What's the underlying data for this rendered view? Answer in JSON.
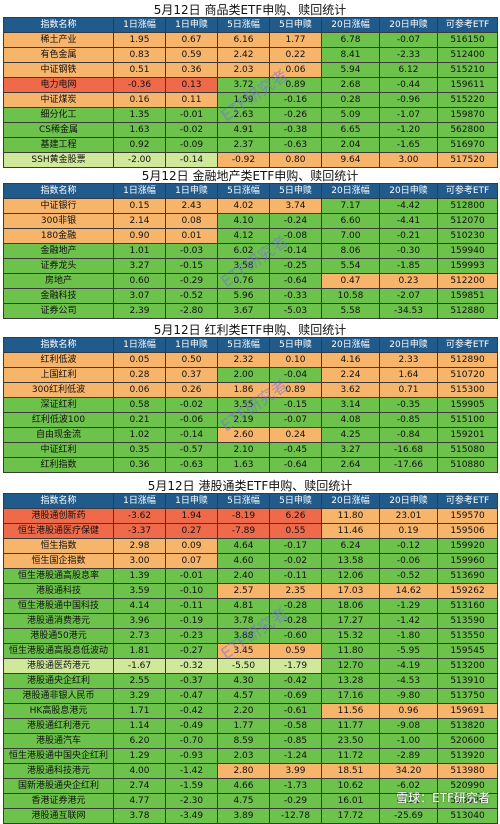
{
  "headers": [
    "指数名称",
    "1日涨幅",
    "1日申赎",
    "5日涨幅",
    "5日申赎",
    "20日涨幅",
    "20日申赎",
    "可参考ETF"
  ],
  "watermark": "ETF研究者",
  "footer": "雪球：ETF研究者",
  "colors": {
    "orange": "#f7b46b",
    "green": "#6cc24a",
    "red": "#ee6a4a",
    "lightgreen": "#cfe89a",
    "header": "#215b8c"
  },
  "sections": [
    {
      "title": "5月12日   商品类ETF申购、赎回统计",
      "rows": [
        {
          "cells": [
            "稀土产业",
            "1.95",
            "0.67",
            "6.16",
            "1.77",
            "6.78",
            "-0.07",
            "516150"
          ],
          "colors": [
            "or",
            "or",
            "or",
            "or",
            "or",
            "gr",
            "gr",
            "gr"
          ]
        },
        {
          "cells": [
            "有色金属",
            "0.83",
            "0.59",
            "2.42",
            "0.22",
            "8.41",
            "-2.33",
            "512400"
          ],
          "colors": [
            "or",
            "or",
            "or",
            "or",
            "or",
            "gr",
            "gr",
            "gr"
          ]
        },
        {
          "cells": [
            "中证钢铁",
            "0.51",
            "0.36",
            "2.03",
            "0.06",
            "5.94",
            "6.12",
            "515210"
          ],
          "colors": [
            "or",
            "or",
            "or",
            "or",
            "or",
            "gr",
            "gr",
            "gr"
          ]
        },
        {
          "cells": [
            "电力电网",
            "-0.36",
            "0.13",
            "3.72",
            "0.89",
            "2.68",
            "-0.44",
            "159611"
          ],
          "colors": [
            "rd",
            "rd",
            "rd",
            "gr",
            "gr",
            "gr",
            "gr",
            "gr"
          ]
        },
        {
          "cells": [
            "中证煤炭",
            "0.16",
            "0.11",
            "1.59",
            "-0.16",
            "0.28",
            "-0.96",
            "515220"
          ],
          "colors": [
            "or",
            "or",
            "or",
            "gr",
            "gr",
            "gr",
            "gr",
            "gr"
          ]
        },
        {
          "cells": [
            "细分化工",
            "1.35",
            "-0.01",
            "2.63",
            "-0.26",
            "5.09",
            "-1.07",
            "159870"
          ],
          "colors": [
            "gr",
            "gr",
            "gr",
            "gr",
            "gr",
            "gr",
            "gr",
            "gr"
          ]
        },
        {
          "cells": [
            "CS稀金属",
            "1.63",
            "-0.02",
            "4.91",
            "-0.38",
            "6.65",
            "-1.20",
            "562800"
          ],
          "colors": [
            "gr",
            "gr",
            "gr",
            "gr",
            "gr",
            "gr",
            "gr",
            "gr"
          ]
        },
        {
          "cells": [
            "基建工程",
            "0.92",
            "-0.09",
            "2.37",
            "-0.63",
            "2.04",
            "-1.65",
            "516970"
          ],
          "colors": [
            "gr",
            "gr",
            "gr",
            "gr",
            "gr",
            "gr",
            "gr",
            "gr"
          ]
        },
        {
          "cells": [
            "SSH黄金股票",
            "-2.00",
            "-0.14",
            "-0.92",
            "0.80",
            "9.64",
            "3.00",
            "517520"
          ],
          "colors": [
            "lg",
            "lg",
            "lg",
            "or",
            "or",
            "or",
            "or",
            "or"
          ]
        }
      ]
    },
    {
      "title": "5月12日   金融地产类ETF申购、赎回统计",
      "rows": [
        {
          "cells": [
            "中证银行",
            "0.15",
            "2.43",
            "4.02",
            "3.74",
            "7.17",
            "-4.42",
            "512800"
          ],
          "colors": [
            "or",
            "or",
            "or",
            "or",
            "or",
            "gr",
            "gr",
            "gr"
          ]
        },
        {
          "cells": [
            "300非银",
            "2.14",
            "0.08",
            "4.10",
            "-0.24",
            "6.60",
            "-4.41",
            "512070"
          ],
          "colors": [
            "or",
            "or",
            "or",
            "gr",
            "gr",
            "gr",
            "gr",
            "gr"
          ]
        },
        {
          "cells": [
            "180金融",
            "0.90",
            "0.01",
            "4.12",
            "-0.08",
            "7.00",
            "-0.21",
            "510230"
          ],
          "colors": [
            "or",
            "or",
            "or",
            "gr",
            "gr",
            "gr",
            "gr",
            "gr"
          ]
        },
        {
          "cells": [
            "金融地产",
            "1.01",
            "-0.03",
            "6.02",
            "-0.14",
            "8.06",
            "-0.30",
            "159940"
          ],
          "colors": [
            "gr",
            "gr",
            "gr",
            "gr",
            "gr",
            "gr",
            "gr",
            "gr"
          ]
        },
        {
          "cells": [
            "证券龙头",
            "3.27",
            "-0.15",
            "3.58",
            "-0.25",
            "5.54",
            "-1.85",
            "159993"
          ],
          "colors": [
            "gr",
            "gr",
            "gr",
            "gr",
            "gr",
            "gr",
            "gr",
            "gr"
          ]
        },
        {
          "cells": [
            "房地产",
            "0.60",
            "-0.29",
            "0.76",
            "-0.64",
            "0.47",
            "0.23",
            "512200"
          ],
          "colors": [
            "gr",
            "gr",
            "gr",
            "gr",
            "gr",
            "or",
            "or",
            "or"
          ]
        },
        {
          "cells": [
            "金融科技",
            "3.07",
            "-0.52",
            "5.96",
            "-0.33",
            "10.58",
            "-2.07",
            "159851"
          ],
          "colors": [
            "gr",
            "gr",
            "gr",
            "gr",
            "gr",
            "gr",
            "gr",
            "gr"
          ]
        },
        {
          "cells": [
            "证券公司",
            "2.39",
            "-2.80",
            "3.67",
            "-5.03",
            "5.58",
            "-34.53",
            "512880"
          ],
          "colors": [
            "gr",
            "gr",
            "gr",
            "gr",
            "gr",
            "gr",
            "gr",
            "gr"
          ]
        }
      ]
    },
    {
      "title": "5月12日   红利类ETF申购、赎回统计",
      "rows": [
        {
          "cells": [
            "红利低波",
            "0.05",
            "0.50",
            "2.32",
            "0.10",
            "4.16",
            "2.33",
            "512890"
          ],
          "colors": [
            "or",
            "or",
            "or",
            "or",
            "or",
            "or",
            "or",
            "or"
          ]
        },
        {
          "cells": [
            "上国红利",
            "0.28",
            "0.37",
            "2.00",
            "-0.04",
            "2.24",
            "1.64",
            "510720"
          ],
          "colors": [
            "or",
            "or",
            "or",
            "gr",
            "gr",
            "or",
            "or",
            "or"
          ]
        },
        {
          "cells": [
            "300红利低波",
            "0.06",
            "0.26",
            "1.86",
            "0.89",
            "3.62",
            "0.71",
            "515300"
          ],
          "colors": [
            "or",
            "or",
            "or",
            "or",
            "or",
            "or",
            "or",
            "or"
          ]
        },
        {
          "cells": [
            "深证红利",
            "0.58",
            "-0.02",
            "3.55",
            "-0.15",
            "3.14",
            "-0.35",
            "159905"
          ],
          "colors": [
            "gr",
            "gr",
            "gr",
            "gr",
            "gr",
            "gr",
            "gr",
            "gr"
          ]
        },
        {
          "cells": [
            "红利低波100",
            "0.21",
            "-0.06",
            "2.19",
            "-0.07",
            "4.08",
            "-0.85",
            "515100"
          ],
          "colors": [
            "gr",
            "gr",
            "gr",
            "gr",
            "gr",
            "gr",
            "gr",
            "gr"
          ]
        },
        {
          "cells": [
            "自由现金流",
            "1.02",
            "-0.14",
            "2.60",
            "0.24",
            "4.25",
            "-0.84",
            "159201"
          ],
          "colors": [
            "gr",
            "gr",
            "gr",
            "or",
            "or",
            "gr",
            "gr",
            "gr"
          ]
        },
        {
          "cells": [
            "中证红利",
            "0.35",
            "-0.57",
            "2.10",
            "-0.45",
            "3.27",
            "-16.68",
            "515080"
          ],
          "colors": [
            "gr",
            "gr",
            "gr",
            "gr",
            "gr",
            "gr",
            "gr",
            "gr"
          ]
        },
        {
          "cells": [
            "红利指数",
            "0.36",
            "-0.63",
            "1.63",
            "-0.64",
            "2.64",
            "-17.66",
            "510880"
          ],
          "colors": [
            "gr",
            "gr",
            "gr",
            "gr",
            "gr",
            "gr",
            "gr",
            "gr"
          ]
        }
      ]
    },
    {
      "title": "5月12日   港股通类ETF申购、赎回统计",
      "rows": [
        {
          "cells": [
            "港股通创新药",
            "-3.62",
            "1.94",
            "-8.19",
            "6.26",
            "11.80",
            "23.01",
            "159570"
          ],
          "colors": [
            "rd",
            "rd",
            "rd",
            "rd",
            "rd",
            "or",
            "or",
            "or"
          ]
        },
        {
          "cells": [
            "恒生港股通医疗保健",
            "-3.37",
            "0.27",
            "-7.89",
            "0.55",
            "11.46",
            "0.19",
            "159506"
          ],
          "colors": [
            "rd",
            "rd",
            "rd",
            "rd",
            "rd",
            "or",
            "or",
            "or"
          ]
        },
        {
          "cells": [
            "恒生指数",
            "2.98",
            "0.09",
            "4.64",
            "-0.17",
            "6.24",
            "-0.12",
            "159920"
          ],
          "colors": [
            "or",
            "or",
            "or",
            "gr",
            "gr",
            "gr",
            "gr",
            "gr"
          ]
        },
        {
          "cells": [
            "恒生国企指数",
            "3.00",
            "0.07",
            "4.60",
            "-0.02",
            "13.58",
            "-0.06",
            "159960"
          ],
          "colors": [
            "or",
            "or",
            "or",
            "gr",
            "gr",
            "gr",
            "gr",
            "gr"
          ]
        },
        {
          "cells": [
            "恒生港股通高股息率",
            "1.39",
            "-0.01",
            "2.40",
            "-0.11",
            "12.06",
            "-0.52",
            "513690"
          ],
          "colors": [
            "gr",
            "gr",
            "gr",
            "gr",
            "gr",
            "gr",
            "gr",
            "gr"
          ]
        },
        {
          "cells": [
            "港股通科技",
            "3.59",
            "-0.10",
            "2.57",
            "2.35",
            "17.03",
            "14.62",
            "159262"
          ],
          "colors": [
            "gr",
            "gr",
            "gr",
            "or",
            "or",
            "or",
            "or",
            "or"
          ]
        },
        {
          "cells": [
            "恒生港股通中国科技",
            "4.14",
            "-0.11",
            "4.81",
            "-0.28",
            "18.06",
            "-1.29",
            "513160"
          ],
          "colors": [
            "gr",
            "gr",
            "gr",
            "gr",
            "gr",
            "gr",
            "gr",
            "gr"
          ]
        },
        {
          "cells": [
            "港股通消费港元",
            "3.96",
            "-0.19",
            "3.78",
            "-0.28",
            "17.27",
            "-1.42",
            "513590"
          ],
          "colors": [
            "gr",
            "gr",
            "gr",
            "gr",
            "gr",
            "gr",
            "gr",
            "gr"
          ]
        },
        {
          "cells": [
            "港股通50港元",
            "2.73",
            "-0.23",
            "3.88",
            "-0.60",
            "15.32",
            "-1.80",
            "513550"
          ],
          "colors": [
            "gr",
            "gr",
            "gr",
            "gr",
            "gr",
            "gr",
            "gr",
            "gr"
          ]
        },
        {
          "cells": [
            "恒生港股通高股息低波动",
            "1.81",
            "-0.27",
            "3.45",
            "0.59",
            "11.80",
            "-5.95",
            "159545"
          ],
          "colors": [
            "gr",
            "gr",
            "gr",
            "or",
            "or",
            "gr",
            "gr",
            "gr"
          ]
        },
        {
          "cells": [
            "港股通医药港元",
            "-1.67",
            "-0.32",
            "-5.50",
            "-1.79",
            "12.70",
            "-4.19",
            "513200"
          ],
          "colors": [
            "lg",
            "lg",
            "lg",
            "lg",
            "lg",
            "gr",
            "gr",
            "gr"
          ]
        },
        {
          "cells": [
            "港股通央企红利",
            "2.55",
            "-0.37",
            "4.30",
            "-0.42",
            "13.28",
            "-4.53",
            "513910"
          ],
          "colors": [
            "gr",
            "gr",
            "gr",
            "gr",
            "gr",
            "gr",
            "gr",
            "gr"
          ]
        },
        {
          "cells": [
            "港股通非银人民币",
            "3.29",
            "-0.47",
            "4.57",
            "-0.69",
            "17.16",
            "-9.80",
            "513750"
          ],
          "colors": [
            "gr",
            "gr",
            "gr",
            "gr",
            "gr",
            "gr",
            "gr",
            "gr"
          ]
        },
        {
          "cells": [
            "HK高股息港元",
            "1.71",
            "-0.42",
            "2.20",
            "-0.61",
            "11.56",
            "0.96",
            "159691"
          ],
          "colors": [
            "gr",
            "gr",
            "gr",
            "gr",
            "gr",
            "or",
            "or",
            "or"
          ]
        },
        {
          "cells": [
            "港股通红利港元",
            "1.14",
            "-0.49",
            "1.77",
            "-0.58",
            "11.77",
            "-9.08",
            "513820"
          ],
          "colors": [
            "gr",
            "gr",
            "gr",
            "gr",
            "gr",
            "gr",
            "gr",
            "gr"
          ]
        },
        {
          "cells": [
            "港股通汽车",
            "6.20",
            "-0.70",
            "8.59",
            "-0.85",
            "23.50",
            "-1.00",
            "520600"
          ],
          "colors": [
            "gr",
            "gr",
            "gr",
            "gr",
            "gr",
            "gr",
            "gr",
            "gr"
          ]
        },
        {
          "cells": [
            "恒生港股通中国央企红利",
            "1.29",
            "-0.93",
            "2.03",
            "-1.24",
            "11.72",
            "-2.89",
            "513920"
          ],
          "colors": [
            "gr",
            "gr",
            "gr",
            "gr",
            "gr",
            "gr",
            "gr",
            "gr"
          ]
        },
        {
          "cells": [
            "港股通科技港元",
            "4.00",
            "-1.42",
            "2.80",
            "3.99",
            "18.51",
            "34.20",
            "513980"
          ],
          "colors": [
            "gr",
            "gr",
            "gr",
            "or",
            "or",
            "or",
            "or",
            "or"
          ]
        },
        {
          "cells": [
            "国新港股通央企红利",
            "2.74",
            "-1.59",
            "4.66",
            "-1.73",
            "10.62",
            "-6.02",
            "520990"
          ],
          "colors": [
            "gr",
            "gr",
            "gr",
            "gr",
            "gr",
            "gr",
            "gr",
            "gr"
          ]
        },
        {
          "cells": [
            "香港证券港元",
            "4.77",
            "-2.30",
            "4.75",
            "-0.29",
            "16.01",
            "-7.91",
            "513090"
          ],
          "colors": [
            "gr",
            "gr",
            "gr",
            "gr",
            "gr",
            "gr",
            "gr",
            "gr"
          ]
        },
        {
          "cells": [
            "港股通互联网",
            "3.78",
            "-3.49",
            "3.89",
            "-12.78",
            "17.72",
            "-25.69",
            "513040"
          ],
          "colors": [
            "gr",
            "gr",
            "gr",
            "gr",
            "gr",
            "gr",
            "gr",
            "gr"
          ]
        }
      ]
    }
  ]
}
